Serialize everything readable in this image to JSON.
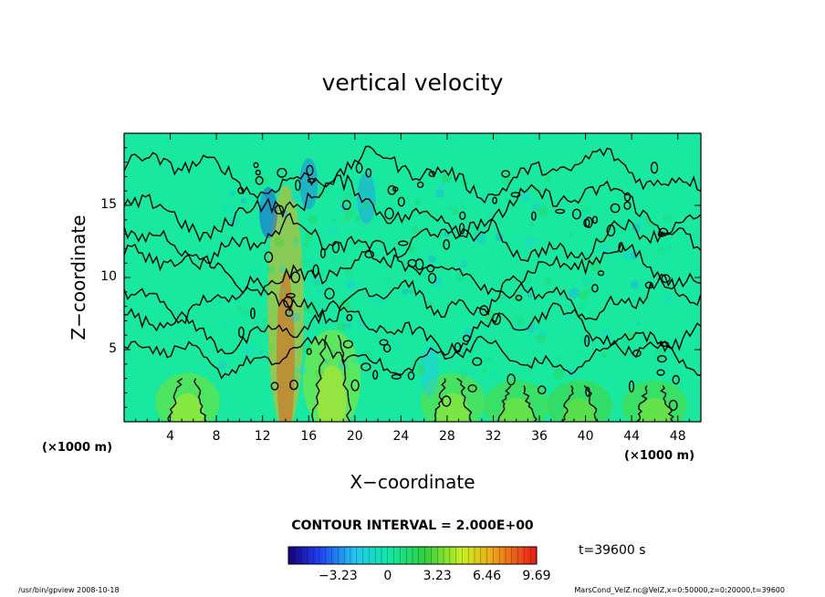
{
  "chart_data": {
    "type": "heatmap",
    "title": "vertical velocity",
    "xlabel": "X−coordinate",
    "ylabel": "Z−coordinate",
    "x_unit_label": "(×1000 m)",
    "y_unit_label": "(×1000 m)",
    "xlim": [
      0,
      50
    ],
    "ylim": [
      0,
      20
    ],
    "x_ticks": [
      4,
      8,
      12,
      16,
      20,
      24,
      28,
      32,
      36,
      40,
      44,
      48
    ],
    "y_ticks": [
      5,
      10,
      15
    ],
    "contour_interval_text": "CONTOUR INTERVAL = 2.000E+00",
    "time_text": "t=39600 s",
    "colorbar": {
      "min": -6.46,
      "max": 9.69,
      "tick_values": [
        -3.23,
        0,
        3.23,
        6.46,
        9.69
      ],
      "tick_labels": [
        "−3.23",
        "0",
        "3.23",
        "6.46",
        "9.69"
      ]
    },
    "plumes": [
      {
        "x": 5.5,
        "z_top": 3.0,
        "w": 3.6
      },
      {
        "x": 18.0,
        "z_top": 6.0,
        "w": 4.0
      },
      {
        "x": 28.5,
        "z_top": 3.0,
        "w": 3.4
      },
      {
        "x": 34.0,
        "z_top": 2.5,
        "w": 3.0
      },
      {
        "x": 39.5,
        "z_top": 2.5,
        "w": 2.8
      },
      {
        "x": 46.0,
        "z_top": 2.5,
        "w": 3.0
      },
      {
        "x": 14.0,
        "z_top": 16.0,
        "w": 6.5
      }
    ],
    "downdrafts": [
      {
        "x": 12.5,
        "z": 14.5,
        "w": -4.5
      },
      {
        "x": 16.0,
        "z": 16.5,
        "w": -3.5
      },
      {
        "x": 21.0,
        "z": 15.5,
        "w": -3.0
      },
      {
        "x": 26.5,
        "z": 3.5,
        "w": -2.0
      }
    ]
  },
  "footer": {
    "left": "/usr/bin/gpview   2008-10-18",
    "right": "MarsCond_VelZ.nc@VelZ,x=0:50000,z=0:20000,t=39600"
  }
}
